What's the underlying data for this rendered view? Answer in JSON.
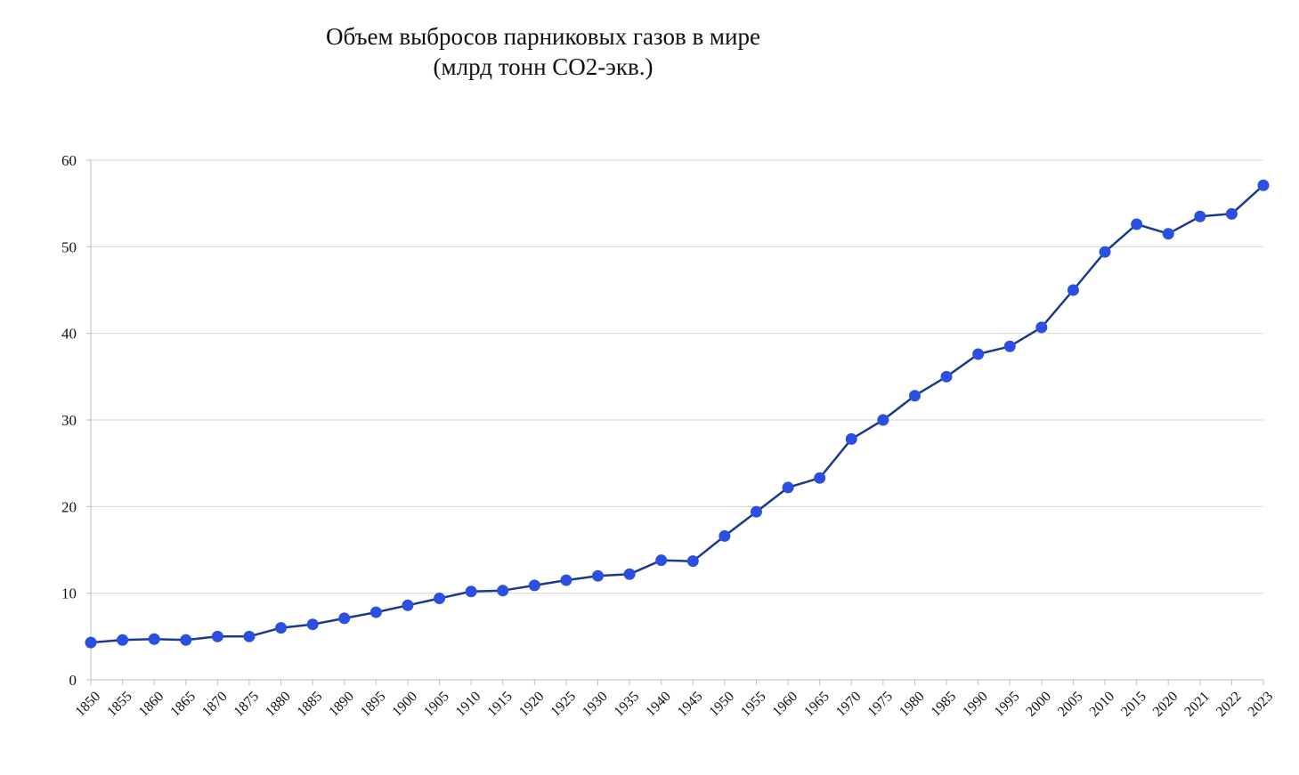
{
  "chart_data": {
    "type": "line",
    "title": "Объем выбросов парниковых газов в мире",
    "subtitle": "(млрд тонн CO2-экв.)",
    "xlabel": "",
    "ylabel": "",
    "ylim": [
      0,
      60
    ],
    "yticks": [
      "0",
      "10",
      "20",
      "30",
      "40",
      "50",
      "60"
    ],
    "grid": true,
    "categories": [
      "1850",
      "1855",
      "1860",
      "1865",
      "1870",
      "1875",
      "1880",
      "1885",
      "1890",
      "1895",
      "1900",
      "1905",
      "1910",
      "1915",
      "1920",
      "1925",
      "1930",
      "1935",
      "1940",
      "1945",
      "1950",
      "1955",
      "1960",
      "1965",
      "1970",
      "1975",
      "1980",
      "1985",
      "1990",
      "1995",
      "2000",
      "2005",
      "2010",
      "2015",
      "2020",
      "2021",
      "2022",
      "2023"
    ],
    "series": [
      {
        "values": [
          4.3,
          4.6,
          4.7,
          4.6,
          5.0,
          5.0,
          6.0,
          6.4,
          7.1,
          7.8,
          8.6,
          9.4,
          10.2,
          10.3,
          10.9,
          11.5,
          12.0,
          12.2,
          13.8,
          13.7,
          16.6,
          19.4,
          22.2,
          23.3,
          27.8,
          30.0,
          32.8,
          35.0,
          37.6,
          38.5,
          40.7,
          45.0,
          49.4,
          52.6,
          51.5,
          53.5,
          53.8,
          57.1
        ],
        "color": "#1a3a8c",
        "marker_color": "#2b4fe0"
      }
    ]
  }
}
